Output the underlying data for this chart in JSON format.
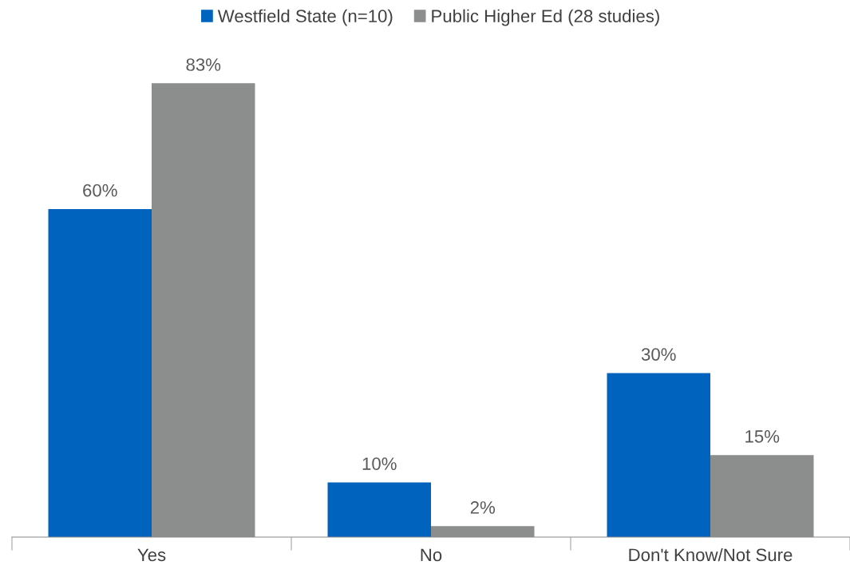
{
  "chart_data": {
    "type": "bar",
    "categories": [
      "Yes",
      "No",
      "Don't Know/Not Sure"
    ],
    "series": [
      {
        "name": "Westfield State (n=10)",
        "color": "#0063be",
        "values": [
          60,
          10,
          30
        ],
        "value_labels": [
          "60%",
          "10%",
          "30%"
        ]
      },
      {
        "name": "Public Higher Ed (28 studies)",
        "color": "#8c8e8d",
        "values": [
          83,
          2,
          15
        ],
        "value_labels": [
          "83%",
          "2%",
          "15%"
        ]
      }
    ],
    "legend": "top",
    "grid": false
  }
}
